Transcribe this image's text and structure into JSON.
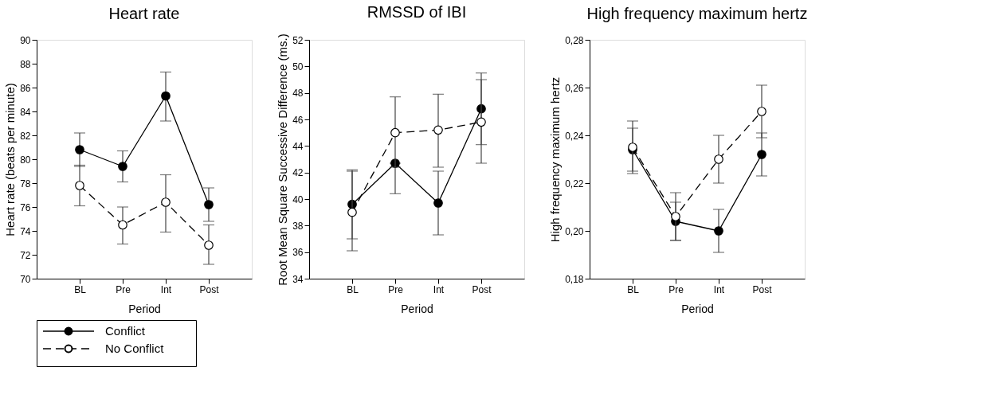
{
  "chart_data": [
    {
      "type": "line",
      "title": "Heart rate",
      "xlabel": "Period",
      "ylabel": "Heart rate (beats per minute)",
      "categories": [
        "BL",
        "Pre",
        "Int",
        "Post"
      ],
      "series": [
        {
          "name": "Conflict",
          "color": "#000000",
          "line_style": "solid",
          "values": [
            80.8,
            79.4,
            85.3,
            76.2
          ],
          "errors": [
            [
              79.4,
              82.2
            ],
            [
              78.1,
              80.7
            ],
            [
              83.2,
              87.3
            ],
            [
              74.8,
              77.6
            ]
          ]
        },
        {
          "name": "No Conflict",
          "color": "#000000",
          "line_style": "dashed",
          "values": [
            77.8,
            74.5,
            76.4,
            72.8
          ],
          "errors": [
            [
              76.1,
              79.5
            ],
            [
              72.9,
              76.0
            ],
            [
              73.9,
              78.7
            ],
            [
              71.2,
              74.5
            ]
          ]
        }
      ],
      "ylim": [
        70,
        90
      ],
      "yticks": [
        70,
        72,
        74,
        76,
        78,
        80,
        82,
        84,
        86,
        88,
        90
      ],
      "marker": "circle",
      "grid": false,
      "legend": "bottom left"
    },
    {
      "type": "line",
      "title": "RMSSD of IBI",
      "xlabel": "Period",
      "ylabel": "Root Mean Square Successive Difference (ms.)",
      "categories": [
        "BL",
        "Pre",
        "Int",
        "Post"
      ],
      "series": [
        {
          "color": "#000000",
          "line_style": "solid",
          "values": [
            39.6,
            42.7,
            39.7,
            46.8
          ],
          "errors": [
            [
              37.0,
              42.1
            ],
            [
              40.4,
              42.7
            ],
            [
              37.3,
              42.1
            ],
            [
              44.1,
              49.5
            ]
          ]
        },
        {
          "color": "#000000",
          "line_style": "dashed",
          "values": [
            39.0,
            45.0,
            45.2,
            45.8
          ],
          "errors": [
            [
              36.1,
              42.2
            ],
            [
              42.4,
              47.7
            ],
            [
              42.4,
              47.9
            ],
            [
              42.7,
              49.0
            ]
          ]
        }
      ],
      "ylim": [
        34,
        52
      ],
      "yticks": [
        34,
        36,
        38,
        40,
        42,
        44,
        46,
        48,
        50,
        52
      ],
      "marker": "circle",
      "grid": false
    },
    {
      "type": "line",
      "title": "High frequency maximum hertz",
      "xlabel": "Period",
      "ylabel": "High frequency maximum hertz",
      "categories": [
        "BL",
        "Pre",
        "Int",
        "Post"
      ],
      "series": [
        {
          "color": "#000000",
          "line_style": "solid",
          "values": [
            0.234,
            0.204,
            0.2,
            0.232
          ],
          "errors": [
            [
              0.225,
              0.243
            ],
            [
              0.196,
              0.212
            ],
            [
              0.191,
              0.209
            ],
            [
              0.223,
              0.241
            ]
          ]
        },
        {
          "color": "#000000",
          "line_style": "dashed",
          "values": [
            0.235,
            0.206,
            0.23,
            0.25
          ],
          "errors": [
            [
              0.224,
              0.246
            ],
            [
              0.196,
              0.216
            ],
            [
              0.22,
              0.24
            ],
            [
              0.239,
              0.261
            ]
          ]
        }
      ],
      "ylim": [
        0.18,
        0.28
      ],
      "yticks": [
        {
          "value": 0.18,
          "label": "0,18"
        },
        {
          "value": 0.2,
          "label": "0,20"
        },
        {
          "value": 0.22,
          "label": "0,22"
        },
        {
          "value": 0.24,
          "label": "0,24"
        },
        {
          "value": 0.26,
          "label": "0,26"
        },
        {
          "value": 0.28,
          "label": "0,28"
        }
      ],
      "marker": "circle",
      "grid": false
    }
  ]
}
